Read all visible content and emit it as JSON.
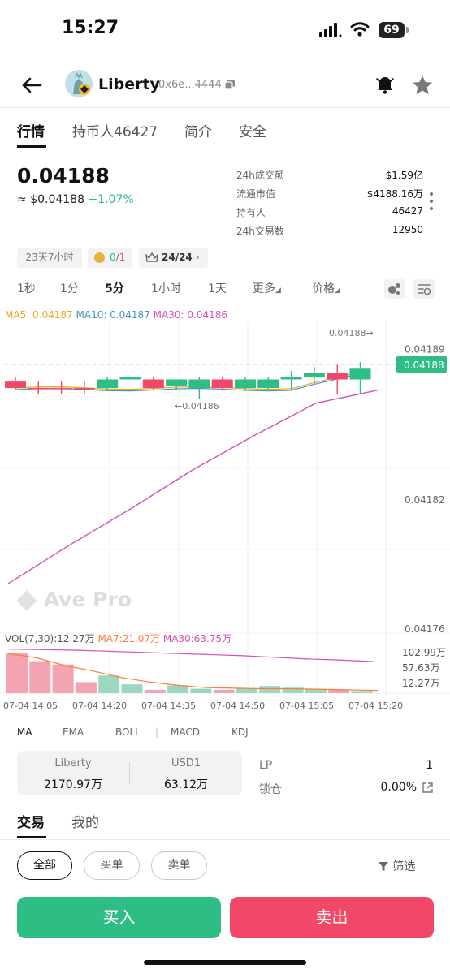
{
  "status_bar": {
    "time": "15:27",
    "battery": "69"
  },
  "header": {
    "token_name": "Liberty",
    "address": "0x6e...4444"
  },
  "tabs": [
    "行情",
    "持币人46427",
    "简介",
    "安全"
  ],
  "price": {
    "value": "0.04188",
    "usd_prefix": "≈",
    "usd": "$0.04188",
    "change": "+1.07%"
  },
  "stats": [
    {
      "label": "24h成交额",
      "value": "$1.59亿"
    },
    {
      "label": "流通市值",
      "value": "$4188.16万"
    },
    {
      "label": "持有人",
      "value": "46427"
    },
    {
      "label": "24h交易数",
      "value": "12950"
    }
  ],
  "chips": {
    "age": "23天7小时",
    "tax_green": "0",
    "tax_sep": "/",
    "tax_red": "1",
    "crown_value": "24/24"
  },
  "timeframes": [
    "1秒",
    "1分",
    "5分",
    "1小时",
    "1天",
    "更多",
    "价格"
  ],
  "ma_legend": {
    "ma5": "MA5: 0.04187",
    "ma10": "MA10: 0.04187",
    "ma30": "MA30: 0.04186"
  },
  "price_axis": [
    "0.04189",
    "0.04182",
    "0.04176"
  ],
  "current_price_tag": "0.04188",
  "annotations": {
    "high": "0.04188→",
    "low": "←0.04186"
  },
  "watermark": "Ave Pro",
  "vol_legend": {
    "vol": "VOL(7,30):12.27万",
    "ma7": "MA7:21.07万",
    "ma30": "MA30:63.75万"
  },
  "vol_axis": [
    "102.99万",
    "57.63万",
    "12.27万"
  ],
  "time_axis": [
    "07-04 14:05",
    "07-04 14:20",
    "07-04 14:35",
    "07-04 14:50",
    "07-04 15:05",
    "07-04 15:20"
  ],
  "indicators": [
    "MA",
    "EMA",
    "BOLL",
    "|",
    "MACD",
    "KDJ"
  ],
  "pool": {
    "token_label": "Liberty",
    "token_value": "2170.97万",
    "quote_label": "USD1",
    "quote_value": "63.12万"
  },
  "lp": {
    "label": "LP",
    "value": "1",
    "lock_label": "锁仓",
    "lock_value": "0.00%"
  },
  "trade_tabs": [
    "交易",
    "我的"
  ],
  "filters": [
    "全部",
    "买单",
    "卖单"
  ],
  "filter_label": "筛选",
  "actions": {
    "buy": "买入",
    "sell": "卖出"
  },
  "colors": {
    "up": "#2ebd85",
    "down": "#f04866",
    "ma5": "#e9a826",
    "ma10": "#4a90c2",
    "ma30": "#d64fb4"
  },
  "chart_data": {
    "type": "candlestick",
    "price_range": [
      0.041755,
      0.0419
    ],
    "candles": [
      {
        "dir": "down",
        "high": 0.041874,
        "low": 0.041868
      },
      {
        "dir": "down",
        "high": 0.041872,
        "low": 0.041866
      },
      {
        "dir": "down",
        "high": 0.041872,
        "low": 0.041866
      },
      {
        "dir": "down",
        "high": 0.041872,
        "low": 0.041866
      },
      {
        "dir": "up",
        "high": 0.041874,
        "low": 0.041868
      },
      {
        "dir": "up",
        "high": 0.041874,
        "low": 0.041873
      },
      {
        "dir": "down",
        "high": 0.041874,
        "low": 0.041868
      },
      {
        "dir": "up",
        "high": 0.041873,
        "low": 0.041868
      },
      {
        "dir": "up",
        "high": 0.041874,
        "low": 0.041864
      },
      {
        "dir": "down",
        "high": 0.041874,
        "low": 0.041868
      },
      {
        "dir": "up",
        "high": 0.041874,
        "low": 0.041868
      },
      {
        "dir": "up",
        "high": 0.041874,
        "low": 0.041868
      },
      {
        "dir": "up",
        "high": 0.041877,
        "low": 0.041868
      },
      {
        "dir": "up",
        "high": 0.041879,
        "low": 0.041871
      },
      {
        "dir": "down",
        "high": 0.04188,
        "low": 0.041866
      },
      {
        "dir": "up",
        "high": 0.041881,
        "low": 0.041866
      }
    ],
    "ma30": [
      0.041778,
      0.041796,
      0.041813,
      0.041831,
      0.041847,
      0.041862,
      0.041868
    ],
    "volume": [
      72,
      58,
      52,
      20,
      32,
      16,
      6,
      14,
      8,
      6,
      9,
      13,
      10,
      8,
      7,
      4
    ],
    "vol_ma7": [
      72,
      64,
      50,
      40,
      28,
      20,
      14,
      10,
      9,
      8,
      8,
      7,
      6,
      5
    ],
    "vol_ma30": [
      80,
      79,
      78,
      76,
      74,
      72,
      70,
      68,
      65,
      62,
      60,
      57
    ],
    "vol_max": 102.99
  }
}
